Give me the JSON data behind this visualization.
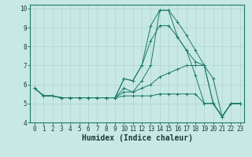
{
  "xlabel": "Humidex (Indice chaleur)",
  "x": [
    0,
    1,
    2,
    3,
    4,
    5,
    6,
    7,
    8,
    9,
    10,
    11,
    12,
    13,
    14,
    15,
    16,
    17,
    18,
    19,
    20,
    21,
    22,
    23
  ],
  "lines": [
    [
      5.8,
      5.4,
      5.4,
      5.3,
      5.3,
      5.3,
      5.3,
      5.3,
      5.3,
      5.3,
      6.3,
      6.2,
      7.0,
      8.3,
      9.1,
      9.1,
      8.5,
      7.8,
      7.2,
      7.0,
      6.3,
      4.3,
      5.0,
      5.0
    ],
    [
      5.8,
      5.4,
      5.4,
      5.3,
      5.3,
      5.3,
      5.3,
      5.3,
      5.3,
      5.3,
      5.8,
      5.6,
      6.2,
      7.0,
      9.9,
      9.9,
      9.3,
      8.6,
      7.8,
      7.0,
      5.0,
      4.3,
      5.0,
      5.0
    ],
    [
      5.8,
      5.4,
      5.4,
      5.3,
      5.3,
      5.3,
      5.3,
      5.3,
      5.3,
      5.3,
      6.3,
      6.2,
      7.0,
      9.1,
      9.9,
      9.9,
      8.5,
      7.8,
      6.5,
      5.0,
      5.0,
      4.3,
      5.0,
      5.0
    ],
    [
      5.8,
      5.4,
      5.4,
      5.3,
      5.3,
      5.3,
      5.3,
      5.3,
      5.3,
      5.3,
      5.6,
      5.6,
      5.8,
      6.0,
      6.4,
      6.6,
      6.8,
      7.0,
      7.0,
      7.0,
      5.0,
      4.3,
      5.0,
      5.0
    ],
    [
      5.8,
      5.4,
      5.4,
      5.3,
      5.3,
      5.3,
      5.3,
      5.3,
      5.3,
      5.3,
      5.4,
      5.4,
      5.4,
      5.4,
      5.5,
      5.5,
      5.5,
      5.5,
      5.5,
      5.0,
      5.0,
      4.3,
      5.0,
      5.0
    ]
  ],
  "line_color": "#1a7a6a",
  "marker": "+",
  "bg_color": "#c8e8e4",
  "grid_color": "#aed4cf",
  "ylim": [
    4,
    10.2
  ],
  "yticks": [
    4,
    5,
    6,
    7,
    8,
    9,
    10
  ],
  "fig_bg": "#c8e8e4",
  "tick_fontsize": 5.5,
  "xlabel_fontsize": 7
}
